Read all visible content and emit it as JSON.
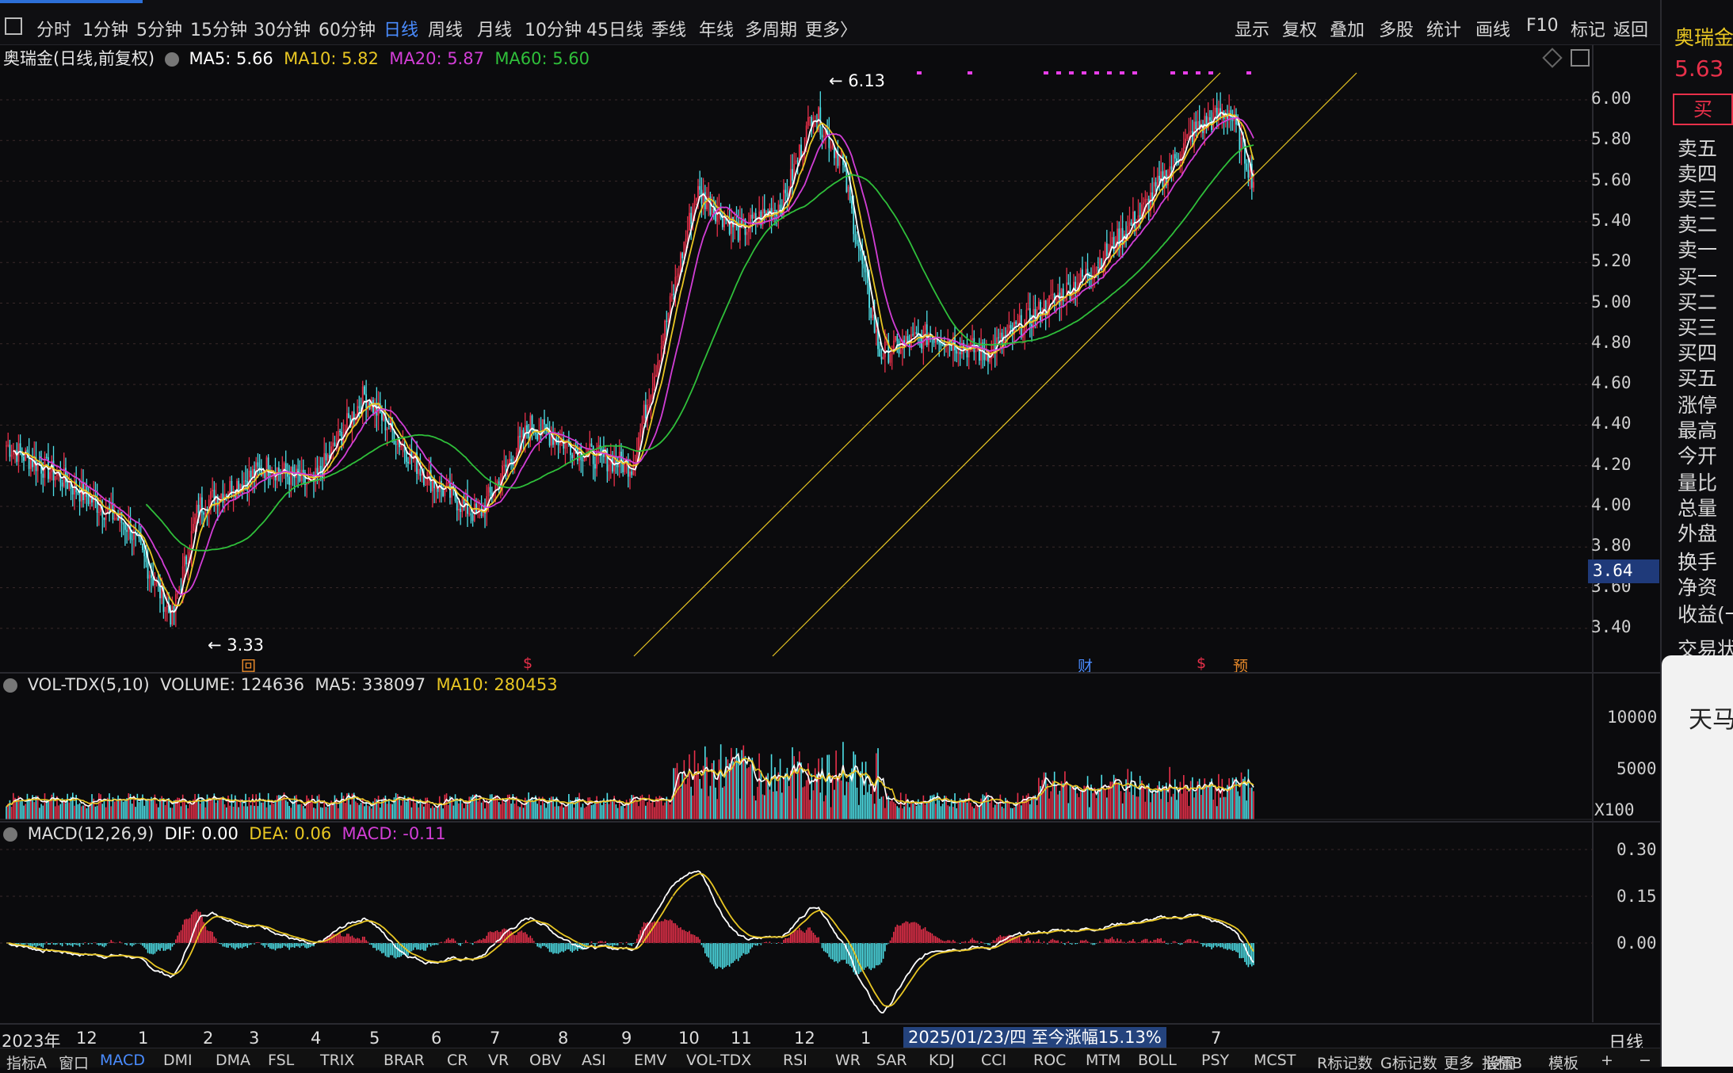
{
  "tabs": [
    "分时",
    "1分钟",
    "5分钟",
    "15分钟",
    "30分钟",
    "60分钟",
    "日线",
    "周线",
    "月线",
    "10分钟",
    "45日线",
    "季线",
    "年线",
    "多周期",
    "更多〉"
  ],
  "active_tab": "日线",
  "right_tabs": [
    "显示",
    "复权",
    "叠加",
    "多股",
    "统计",
    "画线",
    "F10",
    "标记",
    "返回"
  ],
  "main": {
    "title": "奥瑞金(日线,前复权)",
    "ma5": "MA5: 5.66",
    "ma10": "MA10: 5.82",
    "ma20": "MA20: 5.87",
    "ma60": "MA60: 5.60",
    "high_label": "6.13",
    "low_label": "3.33",
    "price_ticks": [
      "6.00",
      "5.80",
      "5.60",
      "5.40",
      "5.20",
      "5.00",
      "4.80",
      "4.60",
      "4.40",
      "4.20",
      "4.00",
      "3.80",
      "3.60",
      "3.40"
    ],
    "cursor_price": "3.64",
    "markers": [
      "回",
      "$",
      "财",
      "$",
      "预"
    ]
  },
  "vol": {
    "title": "VOL-TDX(5,10)",
    "volume": "VOLUME: 124636",
    "ma5": "MA5: 338097",
    "ma10": "MA10: 280453",
    "ticks": [
      "10000",
      "5000"
    ],
    "unit": "X100"
  },
  "macd": {
    "title": "MACD(12,26,9)",
    "dif": "DIF: 0.00",
    "dea": "DEA: 0.06",
    "macd": "MACD: -0.11",
    "ticks": [
      "0.30",
      "0.15",
      "0.00"
    ]
  },
  "time_axis": {
    "labels": [
      "2023年",
      "12",
      "1",
      "2",
      "3",
      "4",
      "5",
      "6",
      "7",
      "8",
      "9",
      "10",
      "11",
      "12",
      "1",
      "7"
    ],
    "tooltip": "2025/01/23/四  至今涨幅15.13%",
    "right_label": "日线"
  },
  "bottom_tabs": [
    "指标A",
    "窗口",
    "MACD",
    "DMI",
    "DMA",
    "FSL",
    "TRIX",
    "BRAR",
    "CR",
    "VR",
    "OBV",
    "ASI",
    "EMV",
    "VOL-TDX",
    "RSI",
    "WR",
    "SAR",
    "KDJ",
    "CCI",
    "ROC",
    "MTM",
    "BOLL",
    "PSY",
    "MCST",
    "R标记数",
    "G标记数",
    "更多",
    "设置"
  ],
  "bottom_right_tabs": [
    "指标B",
    "模板",
    "+",
    "−"
  ],
  "right_panel": {
    "name": "奥瑞金",
    "price": "5.63",
    "buy": "买",
    "items": [
      "卖五",
      "卖四",
      "卖三",
      "卖二",
      "卖一",
      "买一",
      "买二",
      "买三",
      "买四",
      "买五",
      "涨停",
      "最高",
      "今开",
      "量比",
      "总量",
      "外盘",
      "换手",
      "净资",
      "收益(一",
      "交易状"
    ]
  },
  "popup_text": "天马",
  "colors": {
    "up": "#e8304a",
    "down": "#4ee0e8",
    "ma5": "#ffffff",
    "ma10": "#e8c623",
    "ma20": "#d23ed6",
    "ma60": "#2fbf3a",
    "channel": "#e8c623",
    "grid": "#3a2a2a"
  }
}
